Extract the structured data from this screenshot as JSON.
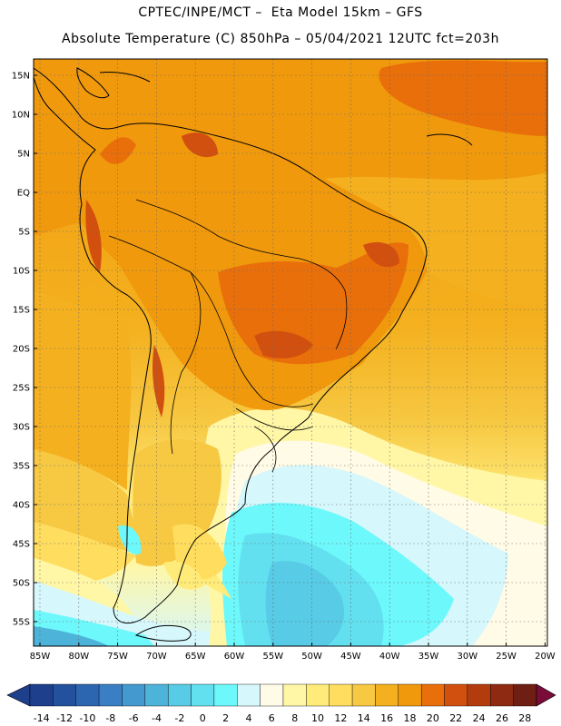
{
  "header": {
    "line1": "CPTEC/INPE/MCT –  Eta Model 15km – GFS",
    "line2": "Absolute Temperature (C) 850hPa – 05/04/2021 12UTC fct=203h"
  },
  "map": {
    "lat_labels": [
      "15N",
      "10N",
      "5N",
      "EQ",
      "5S",
      "10S",
      "15S",
      "20S",
      "25S",
      "30S",
      "35S",
      "40S",
      "45S",
      "50S",
      "55S"
    ],
    "lon_labels": [
      "85W",
      "80W",
      "75W",
      "70W",
      "65W",
      "60W",
      "55W",
      "50W",
      "45W",
      "40W",
      "35W",
      "30W",
      "25W",
      "20W"
    ],
    "grid": "dotted"
  },
  "colorbar": {
    "labels": [
      "-14",
      "-12",
      "-10",
      "-8",
      "-6",
      "-4",
      "-2",
      "0",
      "2",
      "4",
      "6",
      "8",
      "10",
      "12",
      "14",
      "16",
      "18",
      "20",
      "22",
      "24",
      "26",
      "28"
    ],
    "colors": [
      "#1d3f8c",
      "#24519e",
      "#2d66b0",
      "#3a7fc3",
      "#4499cf",
      "#4db3d9",
      "#58cbe6",
      "#62e0ef",
      "#6df8fb",
      "#d6f7fb",
      "#fffbe6",
      "#fff7a6",
      "#ffeb7a",
      "#ffdd5e",
      "#f7c842",
      "#f4b01e",
      "#f0990d",
      "#e96f0b",
      "#d2500f",
      "#b33c0f",
      "#8e2a12",
      "#6e1e12"
    ],
    "under_color": "#1d3f8c",
    "over_color": "#7a0c3a"
  }
}
